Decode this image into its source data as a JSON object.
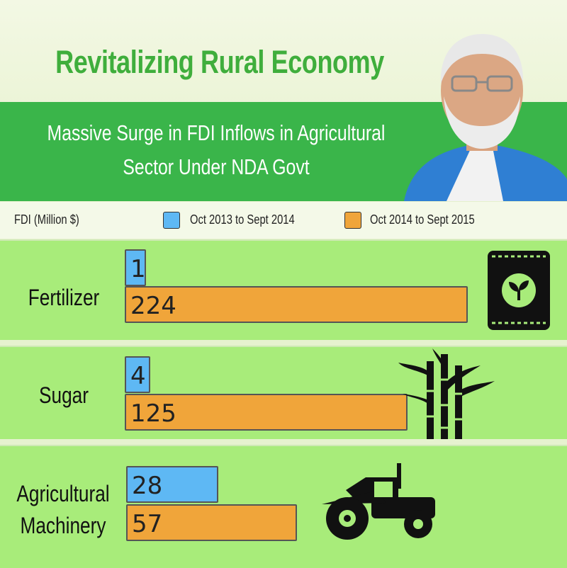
{
  "title": "Revitalizing Rural Economy",
  "subtitle_line1": "Massive Surge in FDI Inflows in Agricultural",
  "subtitle_line2": "Sector Under NDA Govt",
  "colors": {
    "series1": "#5eb8f4",
    "series2": "#f0a53a",
    "banner": "#3ab54a",
    "title": "#3fae3c",
    "panel": "#a8ec7a"
  },
  "chart_data": {
    "type": "bar",
    "orientation": "horizontal",
    "unit_label": "FDI (Million $)",
    "categories": [
      "Fertilizer",
      "Sugar",
      "Agricultural Machinery"
    ],
    "category_lines": [
      [
        "Fertilizer"
      ],
      [
        "Sugar"
      ],
      [
        "Agricultural",
        "Machinery"
      ]
    ],
    "series": [
      {
        "name": "Oct 2013 to Sept 2014",
        "values": [
          1,
          4,
          28
        ]
      },
      {
        "name": "Oct 2014 to Sept 2015",
        "values": [
          224,
          125,
          57
        ]
      }
    ],
    "icons": [
      "fertilizer-bag-icon",
      "sugarcane-icon",
      "tractor-icon"
    ]
  }
}
